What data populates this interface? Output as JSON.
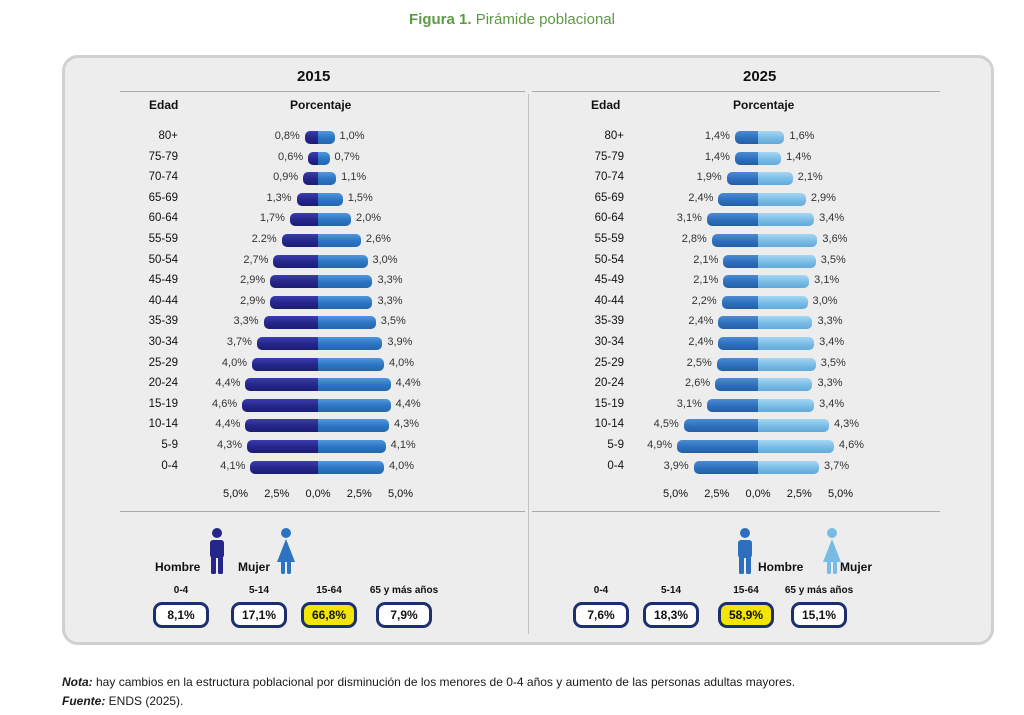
{
  "figure_title": {
    "prefix": "Figura 1.",
    "text": "Pirámide poblacional"
  },
  "chart_data": [
    {
      "type": "bar",
      "title": "2015",
      "xlabel": "Porcentaje",
      "ylabel": "Edad",
      "categories": [
        "80+",
        "75-79",
        "70-74",
        "65-69",
        "60-64",
        "55-59",
        "50-54",
        "45-49",
        "40-44",
        "35-39",
        "30-34",
        "25-29",
        "20-24",
        "15-19",
        "10-14",
        "5-9",
        "0-4"
      ],
      "series": [
        {
          "name": "Hombre",
          "side": "left",
          "color": "#252688",
          "values": [
            0.8,
            0.6,
            0.9,
            1.3,
            1.7,
            2.2,
            2.7,
            2.9,
            2.9,
            3.3,
            3.7,
            4.0,
            4.4,
            4.6,
            4.4,
            4.3,
            4.1
          ],
          "labels": [
            "0,8%",
            "0,6%",
            "0,9%",
            "1,3%",
            "1,7%",
            "2.2%",
            "2,7%",
            "2,9%",
            "2,9%",
            "3,3%",
            "3,7%",
            "4,0%",
            "4,4%",
            "4,6%",
            "4,4%",
            "4,3%",
            "4,1%"
          ]
        },
        {
          "name": "Mujer",
          "side": "right",
          "color": "#2c74c2",
          "values": [
            1.0,
            0.7,
            1.1,
            1.5,
            2.0,
            2.6,
            3.0,
            3.3,
            3.3,
            3.5,
            3.9,
            4.0,
            4.4,
            4.4,
            4.3,
            4.1,
            4.0
          ],
          "labels": [
            "1,0%",
            "0,7%",
            "1,1%",
            "1,5%",
            "2,0%",
            "2,6%",
            "3,0%",
            "3,3%",
            "3,3%",
            "3,5%",
            "3,9%",
            "4,0%",
            "4,4%",
            "4,4%",
            "4,3%",
            "4,1%",
            "4,0%"
          ]
        }
      ],
      "xticks": [
        "5,0%",
        "2,5%",
        "0,0%",
        "2,5%",
        "5,0%"
      ],
      "xlim": [
        -5,
        5
      ],
      "groups": [
        {
          "label": "0-4",
          "value": "8,1%",
          "highlight": false
        },
        {
          "label": "5-14",
          "value": "17,1%",
          "highlight": false
        },
        {
          "label": "15-64",
          "value": "66,8%",
          "highlight": true
        },
        {
          "label": "65 y más años",
          "value": "7,9%",
          "highlight": false
        }
      ],
      "legend": {
        "male": "Hombre",
        "female": "Mujer",
        "male_color": "#252688",
        "female_color": "#2c74c2"
      }
    },
    {
      "type": "bar",
      "title": "2025",
      "xlabel": "Porcentaje",
      "ylabel": "Edad",
      "categories": [
        "80+",
        "75-79",
        "70-74",
        "65-69",
        "60-64",
        "55-59",
        "50-54",
        "45-49",
        "40-44",
        "35-39",
        "30-34",
        "25-29",
        "20-24",
        "15-19",
        "10-14",
        "5-9",
        "0-4"
      ],
      "series": [
        {
          "name": "Hombre",
          "side": "left",
          "color": "#2d6fbd",
          "values": [
            1.4,
            1.4,
            1.9,
            2.4,
            3.1,
            2.8,
            2.1,
            2.1,
            2.2,
            2.4,
            2.4,
            2.5,
            2.6,
            3.1,
            4.5,
            4.9,
            3.9
          ],
          "labels": [
            "1,4%",
            "1,4%",
            "1,9%",
            "2,4%",
            "3,1%",
            "2,8%",
            "2,1%",
            "2,1%",
            "2,2%",
            "2,4%",
            "2,4%",
            "2,5%",
            "2,6%",
            "3,1%",
            "4,5%",
            "4,9%",
            "3,9%"
          ]
        },
        {
          "name": "Mujer",
          "side": "right",
          "color": "#78bce6",
          "values": [
            1.6,
            1.4,
            2.1,
            2.9,
            3.4,
            3.6,
            3.5,
            3.1,
            3.0,
            3.3,
            3.4,
            3.5,
            3.3,
            3.4,
            4.3,
            4.6,
            3.7
          ],
          "labels": [
            "1,6%",
            "1,4%",
            "2,1%",
            "2,9%",
            "3,4%",
            "3,6%",
            "3,5%",
            "3,1%",
            "3,0%",
            "3,3%",
            "3,4%",
            "3,5%",
            "3,3%",
            "3,4%",
            "4,3%",
            "4,6%",
            "3,7%"
          ]
        }
      ],
      "xticks": [
        "5,0%",
        "2,5%",
        "0,0%",
        "2,5%",
        "5,0%"
      ],
      "xlim": [
        -5,
        5
      ],
      "groups": [
        {
          "label": "0-4",
          "value": "7,6%",
          "highlight": false
        },
        {
          "label": "5-14",
          "value": "18,3%",
          "highlight": false
        },
        {
          "label": "15-64",
          "value": "58,9%",
          "highlight": true
        },
        {
          "label": "65 y más años",
          "value": "15,1%",
          "highlight": false
        }
      ],
      "legend": {
        "male": "Hombre",
        "female": "Mujer",
        "male_color": "#2d6fbd",
        "female_color": "#78bce6"
      }
    }
  ],
  "footnote": {
    "nota_label": "Nota:",
    "nota_text": " hay cambios en la estructura poblacional por disminución de los menores de 0-4 años y aumento de las personas adultas mayores.",
    "fuente_label": "Fuente:",
    "fuente_text": " ENDS (2025)."
  }
}
